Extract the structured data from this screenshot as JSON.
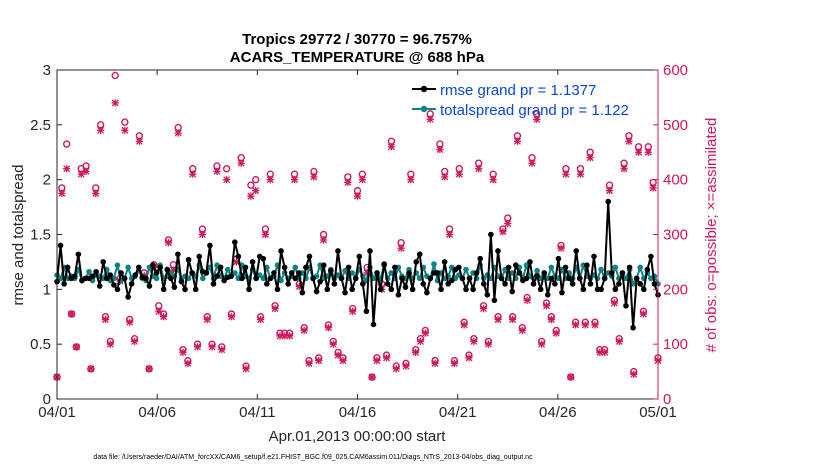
{
  "chart_data": {
    "type": "line",
    "title_line1": "Tropics 29772 / 30770 = 96.757%",
    "title_line2": "ACARS_TEMPERATURE @ 688 hPa",
    "xlabel": "Apr.01,2013 00:00:00 start",
    "ylabel_left": "rmse and totalspread",
    "ylabel_right": "# of obs: o=possible; ×=assimilated",
    "x_ticks": [
      "04/01",
      "04/06",
      "04/11",
      "04/16",
      "04/21",
      "04/26",
      "05/01"
    ],
    "x_tick_days": [
      0,
      5,
      10,
      15,
      20,
      25,
      30
    ],
    "xlim": [
      0,
      30
    ],
    "ylim_left": [
      0,
      3
    ],
    "ylim_right": [
      0,
      600
    ],
    "y_ticks_left": [
      "0",
      "0.5",
      "1",
      "1.5",
      "2",
      "2.5",
      "3"
    ],
    "y_ticks_right": [
      "0",
      "100",
      "200",
      "300",
      "400",
      "500",
      "600"
    ],
    "legend": [
      "rmse grand pr = 1.1377",
      "totalspread grand pr = 1.122"
    ],
    "footer": "data file: /Users/raeder/DAI/ATM_forcXX/CAM6_setup/f.e21.FHIST_BGC.f09_025.CAM6assim.011/Diags_NTrS_2013-04/obs_diag_output.nc",
    "colors": {
      "rmse": "#000000",
      "spread": "#0f8282",
      "obs": "#d0185c",
      "legend_text": "#0a46dc"
    },
    "series": [
      {
        "name": "rmse",
        "values": [
          1.07,
          1.4,
          1.05,
          1.2,
          1.1,
          1.12,
          1.32,
          1.08,
          1.1,
          1.1,
          1.12,
          1.16,
          1.03,
          1.25,
          1.1,
          1.13,
          1.04,
          1.0,
          1.15,
          1.1,
          0.93,
          1.05,
          1.13,
          1.2,
          1.11,
          1.1,
          1.03,
          1.22,
          1.15,
          1.2,
          1.0,
          1.18,
          1.1,
          1.02,
          1.32,
          1.07,
          1.0,
          1.27,
          1.15,
          1.0,
          1.3,
          1.16,
          1.15,
          1.4,
          1.05,
          1.12,
          1.2,
          1.08,
          1.11,
          1.12,
          1.43,
          1.3,
          1.1,
          1.2,
          1.0,
          1.25,
          1.1,
          1.3,
          1.28,
          1.05,
          1.1,
          1.15,
          1.0,
          1.35,
          1.2,
          1.05,
          1.15,
          1.1,
          1.15,
          0.97,
          1.2,
          1.3,
          1.1,
          0.98,
          1.07,
          1.22,
          1.0,
          1.17,
          1.05,
          1.35,
          1.1,
          0.97,
          1.2,
          1.0,
          1.1,
          1.3,
          1.05,
          0.8,
          1.35,
          0.68,
          1.15,
          1.0,
          1.23,
          1.05,
          1.0,
          1.2,
          0.95,
          1.1,
          1.02,
          1.15,
          1.0,
          1.25,
          1.32,
          1.05,
          0.97,
          1.1,
          1.15,
          1.15,
          1.0,
          1.25,
          1.05,
          1.08,
          1.18,
          1.2,
          1.1,
          1.0,
          1.1,
          1.0,
          1.15,
          1.28,
          1.05,
          0.95,
          1.5,
          0.9,
          1.35,
          1.1,
          1.05,
          1.2,
          0.98,
          1.22,
          1.15,
          1.08,
          1.1,
          1.25,
          1.05,
          1.12,
          1.0,
          1.15,
          0.95,
          1.1,
          1.05,
          1.28,
          0.97,
          1.2,
          1.1,
          1.05,
          1.35,
          1.1,
          1.0,
          1.22,
          1.05,
          1.3,
          1.0,
          1.0,
          1.1,
          1.8,
          1.15,
          1.0,
          1.05,
          1.15,
          0.85,
          1.2,
          0.65,
          1.1,
          1.05,
          1.0,
          1.18,
          1.3,
          1.05,
          0.95
        ]
      },
      {
        "name": "totalspread",
        "values": [
          1.13,
          1.1,
          1.2,
          1.1,
          1.12,
          1.1,
          1.18,
          1.08,
          1.1,
          1.16,
          1.08,
          1.13,
          1.12,
          1.1,
          1.18,
          1.08,
          1.1,
          1.22,
          1.08,
          1.1,
          1.2,
          1.1,
          1.12,
          1.17,
          1.1,
          1.08,
          1.2,
          1.12,
          1.1,
          1.22,
          1.1,
          1.12,
          1.15,
          1.12,
          1.18,
          1.1,
          1.12,
          1.1,
          1.15,
          1.12,
          1.22,
          1.1,
          1.15,
          1.2,
          1.1,
          1.22,
          1.12,
          1.1,
          1.18,
          1.12,
          1.15,
          1.1,
          1.22,
          1.12,
          1.1,
          1.18,
          1.1,
          1.13,
          1.1,
          1.2,
          1.1,
          1.12,
          1.22,
          1.08,
          1.15,
          1.1,
          1.12,
          1.2,
          1.1,
          1.15,
          1.1,
          1.2,
          1.1,
          1.12,
          1.22,
          1.1,
          1.12,
          1.18,
          1.1,
          1.13,
          1.1,
          1.17,
          1.1,
          1.15,
          1.1,
          1.18,
          1.12,
          1.08,
          1.2,
          1.1,
          1.13,
          1.1,
          1.22,
          1.1,
          1.15,
          1.1,
          1.2,
          1.12,
          1.1,
          1.18,
          1.1,
          1.15,
          1.1,
          1.2,
          1.12,
          1.1,
          1.23,
          1.08,
          1.15,
          1.1,
          1.12,
          1.2,
          1.1,
          1.13,
          1.1,
          1.18,
          1.1,
          1.15,
          1.1,
          1.22,
          1.1,
          1.13,
          1.1,
          1.2,
          1.12,
          1.1,
          1.18,
          1.1,
          1.15,
          1.1,
          1.2,
          1.1,
          1.22,
          1.12,
          1.1,
          1.17,
          1.1,
          1.13,
          1.1,
          1.2,
          1.12,
          1.1,
          1.18,
          1.1,
          1.15,
          1.1,
          1.2,
          1.1,
          1.22,
          1.12,
          1.1,
          1.13,
          1.1,
          1.18,
          1.1,
          1.15,
          1.12,
          1.2,
          1.1,
          1.13,
          1.1,
          1.18,
          1.05,
          1.1,
          1.2,
          1.1,
          1.15,
          1.1,
          1.12,
          1.05
        ]
      },
      {
        "name": "obs_possible",
        "values": [
          40,
          385,
          465,
          155,
          95,
          420,
          425,
          55,
          385,
          500,
          150,
          105,
          590,
          220,
          505,
          145,
          110,
          480,
          230,
          55,
          245,
          170,
          155,
          290,
          245,
          495,
          90,
          70,
          420,
          100,
          310,
          150,
          100,
          425,
          95,
          420,
          155,
          255,
          440,
          60,
          390,
          400,
          150,
          310,
          410,
          170,
          120,
          120,
          120,
          410,
          210,
          130,
          70,
          415,
          75,
          300,
          135,
          105,
          85,
          75,
          405,
          165,
          380,
          410,
          240,
          40,
          75,
          210,
          80,
          470,
          60,
          285,
          65,
          410,
          90,
          110,
          125,
          520,
          70,
          465,
          415,
          310,
          70,
          420,
          140,
          80,
          110,
          430,
          170,
          105,
          410,
          150,
          310,
          330,
          150,
          480,
          130,
          185,
          440,
          520,
          105,
          175,
          150,
          125,
          280,
          420,
          40,
          140,
          420,
          140,
          450,
          140,
          90,
          90,
          390,
          180,
          110,
          430,
          480,
          50,
          460,
          160,
          460,
          395,
          75
        ]
      },
      {
        "name": "obs_assimilated",
        "values": [
          40,
          375,
          420,
          155,
          95,
          410,
          415,
          55,
          375,
          490,
          145,
          100,
          540,
          215,
          490,
          140,
          105,
          470,
          225,
          55,
          240,
          160,
          150,
          285,
          235,
          485,
          85,
          65,
          410,
          95,
          300,
          145,
          95,
          415,
          90,
          400,
          150,
          250,
          430,
          55,
          370,
          380,
          145,
          300,
          400,
          165,
          115,
          115,
          115,
          400,
          205,
          125,
          65,
          405,
          70,
          290,
          130,
          100,
          80,
          70,
          395,
          160,
          370,
          400,
          230,
          40,
          70,
          200,
          75,
          460,
          55,
          275,
          60,
          400,
          85,
          105,
          120,
          510,
          65,
          455,
          405,
          300,
          65,
          410,
          135,
          75,
          105,
          420,
          165,
          100,
          400,
          145,
          305,
          320,
          145,
          470,
          125,
          180,
          430,
          510,
          100,
          170,
          145,
          120,
          275,
          410,
          40,
          135,
          410,
          135,
          440,
          135,
          85,
          85,
          380,
          175,
          105,
          420,
          470,
          45,
          450,
          155,
          450,
          385,
          70
        ]
      }
    ]
  }
}
